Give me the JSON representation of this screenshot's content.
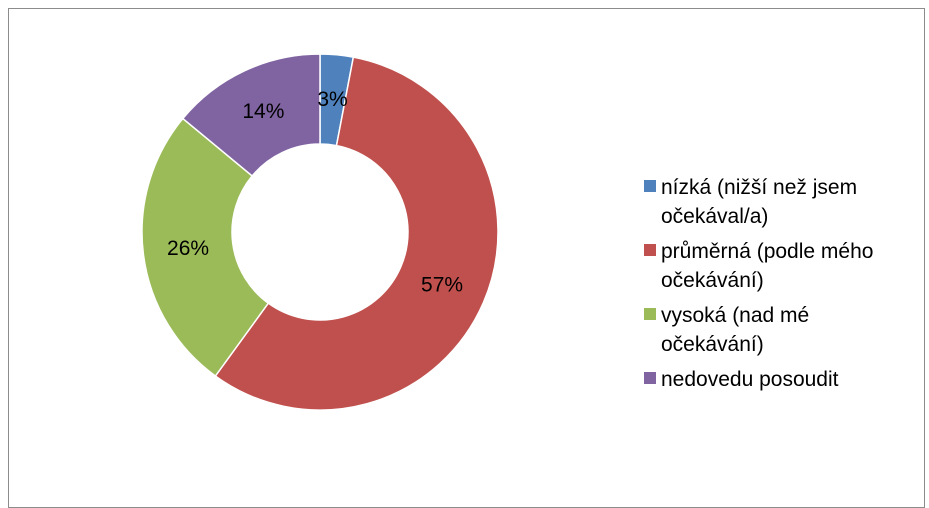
{
  "chart_data": {
    "type": "pie",
    "donut": true,
    "title": "",
    "categories": [
      "nízká (nižší než jsem očekával/a)",
      "průměrná (podle mého očekávání)",
      "vysoká (nad mé očekávání)",
      "nedovedu posoudit"
    ],
    "values": [
      3,
      57,
      26,
      14
    ],
    "labels": [
      "3%",
      "57%",
      "26%",
      "14%"
    ],
    "colors": [
      "#4F81BD",
      "#C0504D",
      "#9BBB59",
      "#8064A2"
    ],
    "legend": {
      "position": "right"
    }
  }
}
